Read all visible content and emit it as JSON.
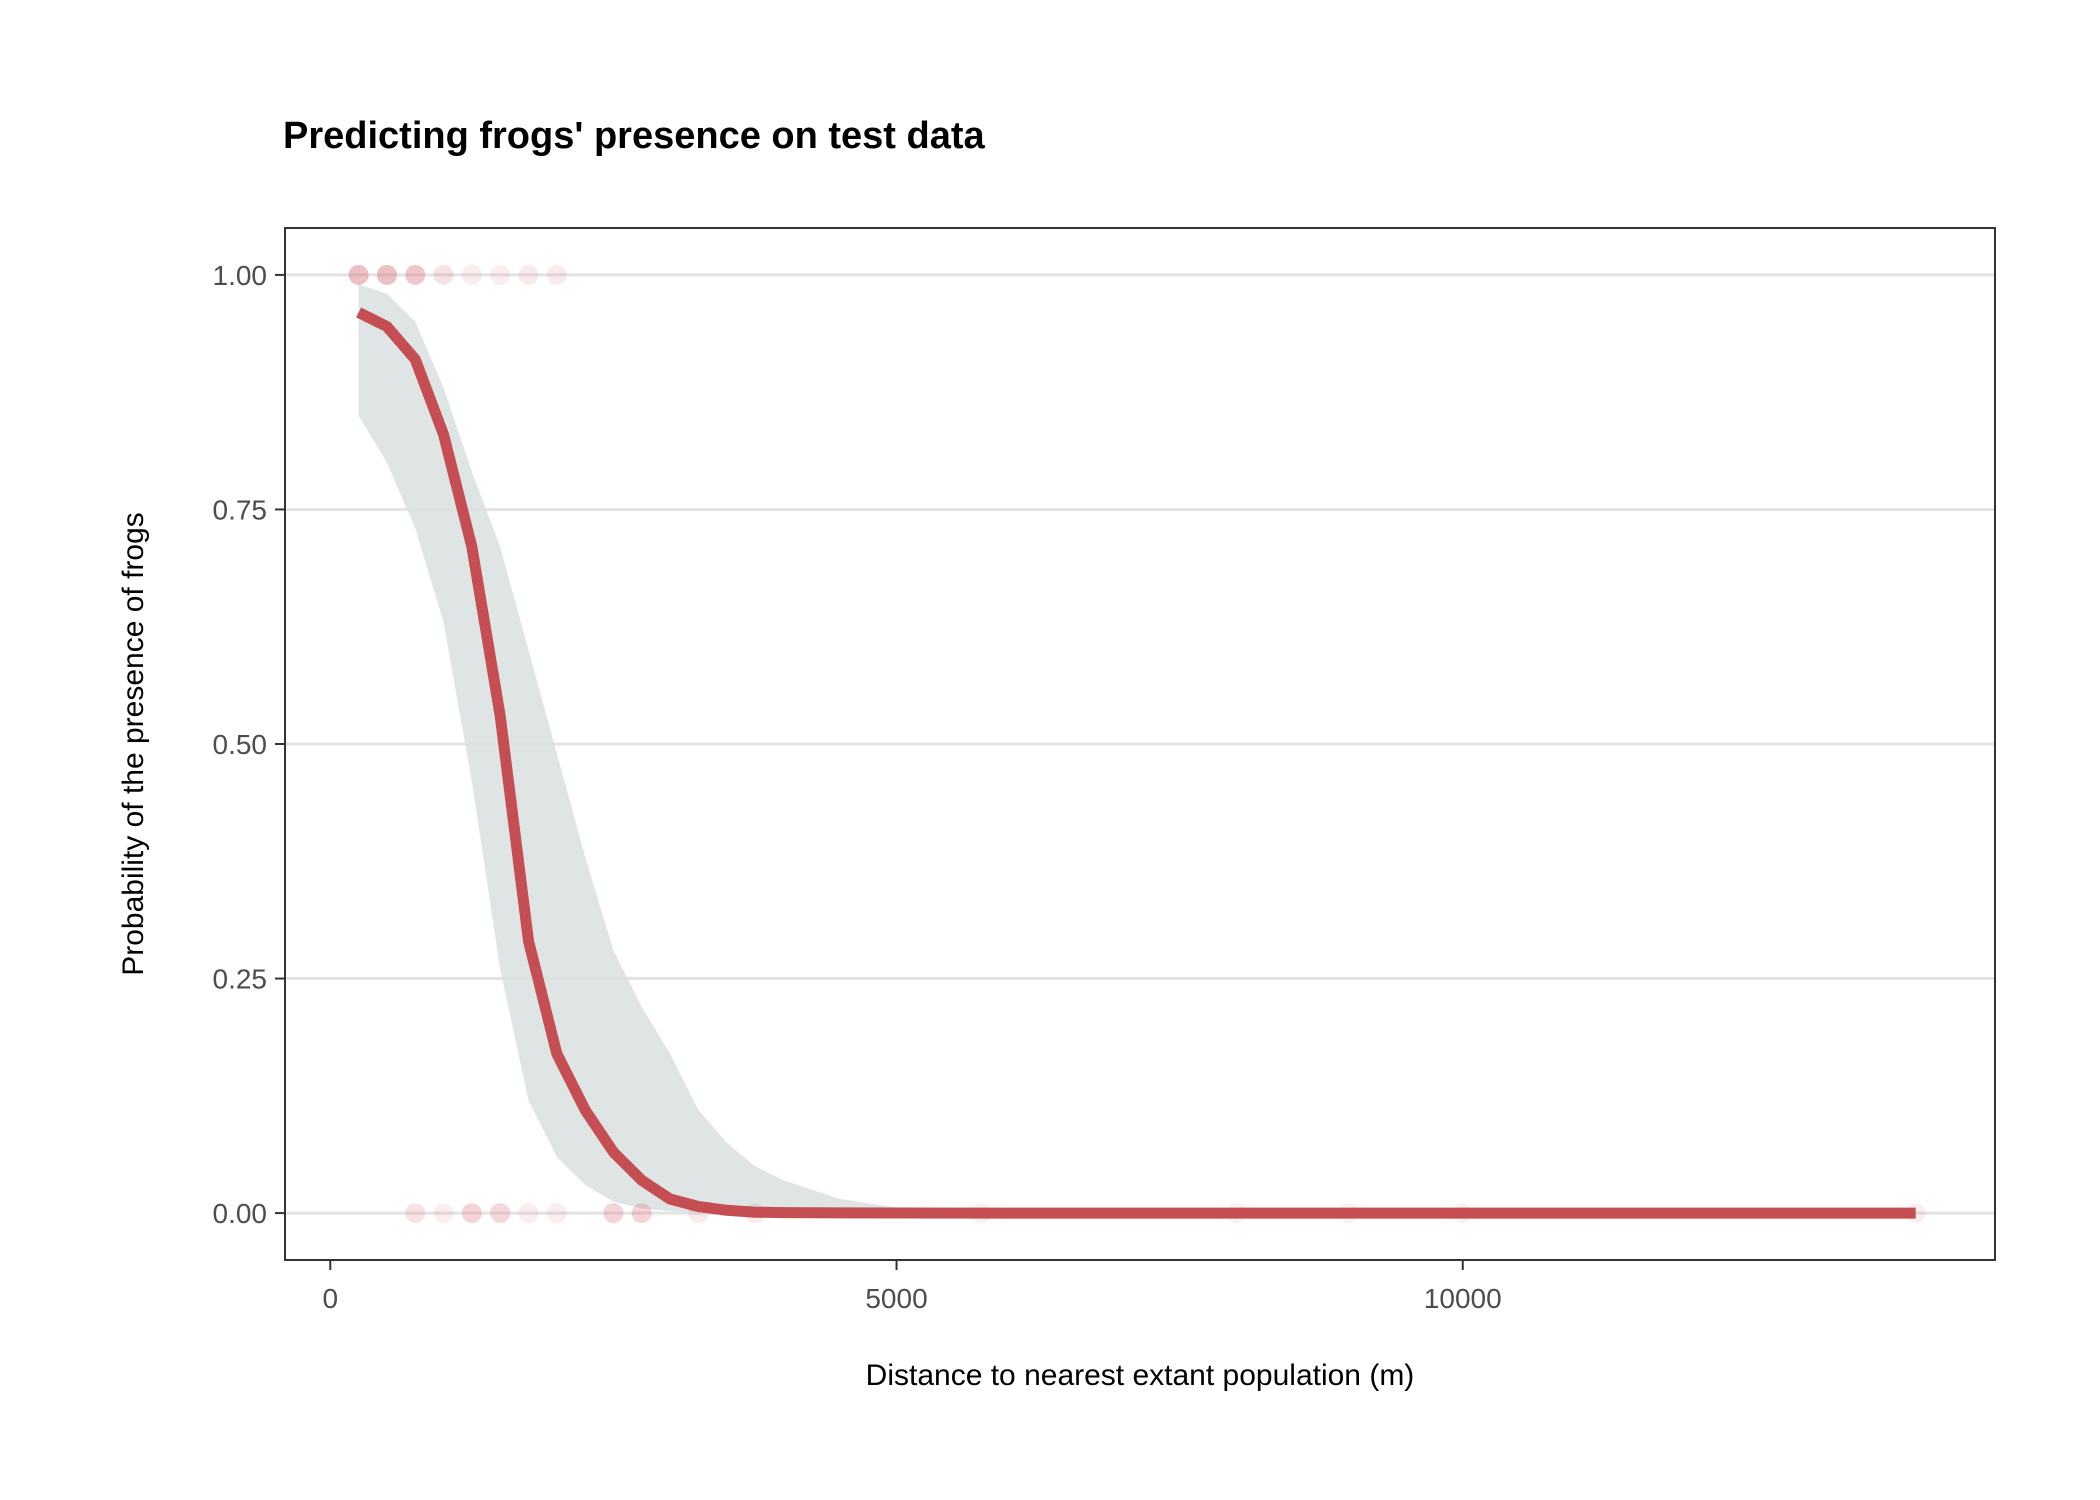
{
  "chart_data": {
    "type": "line",
    "title": "Predicting frogs' presence on test data",
    "xlabel": "Distance to nearest extant population (m)",
    "ylabel": "Probability of the presence of frogs",
    "xlim": [
      -400,
      14700
    ],
    "ylim": [
      -0.05,
      1.05
    ],
    "xticks": [
      0,
      5000,
      10000
    ],
    "xtick_labels": [
      "0",
      "5000",
      "10000"
    ],
    "yticks": [
      0,
      0.25,
      0.5,
      0.75,
      1
    ],
    "ytick_labels": [
      "0.00",
      "0.25",
      "0.50",
      "0.75",
      "1.00"
    ],
    "grid": "horizontal major",
    "colors": {
      "line": "#c44e52",
      "ribbon": "#d9dfdf",
      "points": "#d9727a",
      "grid": "#e3e3e3"
    },
    "series": [
      {
        "type": "line",
        "x": [
          250,
          500,
          750,
          1000,
          1250,
          1500,
          1750,
          2000,
          2250,
          2500,
          2750,
          3000,
          3250,
          3500,
          3750,
          4000,
          4500,
          5000,
          6000,
          8000,
          10000,
          14000
        ],
        "values": [
          0.96,
          0.945,
          0.91,
          0.83,
          0.71,
          0.53,
          0.29,
          0.17,
          0.11,
          0.065,
          0.035,
          0.015,
          0.007,
          0.003,
          0.001,
          0.0005,
          0.0002,
          0.0001,
          0,
          0,
          0,
          0
        ]
      },
      {
        "type": "ribbon",
        "x": [
          250,
          500,
          750,
          1000,
          1250,
          1500,
          1750,
          2000,
          2250,
          2500,
          2750,
          3000,
          3250,
          3500,
          3750,
          4000,
          4500,
          5000,
          6000,
          8000,
          10000,
          14000
        ],
        "upper": [
          0.99,
          0.98,
          0.95,
          0.88,
          0.79,
          0.71,
          0.6,
          0.49,
          0.38,
          0.28,
          0.22,
          0.17,
          0.11,
          0.075,
          0.05,
          0.035,
          0.015,
          0.006,
          0.001,
          0,
          0,
          0
        ],
        "lower": [
          0.85,
          0.8,
          0.73,
          0.63,
          0.46,
          0.26,
          0.12,
          0.06,
          0.03,
          0.012,
          0.005,
          0.002,
          0.001,
          0,
          0,
          0,
          0,
          0,
          0,
          0,
          0,
          0
        ]
      },
      {
        "type": "points",
        "points": [
          {
            "x": 250,
            "y": 1,
            "alpha": 0.45
          },
          {
            "x": 500,
            "y": 1,
            "alpha": 0.45
          },
          {
            "x": 750,
            "y": 1,
            "alpha": 0.4
          },
          {
            "x": 1000,
            "y": 1,
            "alpha": 0.2
          },
          {
            "x": 1250,
            "y": 1,
            "alpha": 0.12
          },
          {
            "x": 1500,
            "y": 1,
            "alpha": 0.12
          },
          {
            "x": 1750,
            "y": 1,
            "alpha": 0.15
          },
          {
            "x": 2000,
            "y": 1,
            "alpha": 0.15
          },
          {
            "x": 750,
            "y": 0,
            "alpha": 0.2
          },
          {
            "x": 1000,
            "y": 0,
            "alpha": 0.12
          },
          {
            "x": 1250,
            "y": 0,
            "alpha": 0.3
          },
          {
            "x": 1500,
            "y": 0,
            "alpha": 0.28
          },
          {
            "x": 1750,
            "y": 0,
            "alpha": 0.12
          },
          {
            "x": 2000,
            "y": 0,
            "alpha": 0.12
          },
          {
            "x": 2500,
            "y": 0,
            "alpha": 0.3
          },
          {
            "x": 2750,
            "y": 0,
            "alpha": 0.3
          },
          {
            "x": 3250,
            "y": 0,
            "alpha": 0.15
          },
          {
            "x": 3750,
            "y": 0,
            "alpha": 0.15
          },
          {
            "x": 5750,
            "y": 0,
            "alpha": 0.1
          },
          {
            "x": 8000,
            "y": 0,
            "alpha": 0.1
          },
          {
            "x": 9000,
            "y": 0,
            "alpha": 0.1
          },
          {
            "x": 10000,
            "y": 0,
            "alpha": 0.1
          },
          {
            "x": 14000,
            "y": 0,
            "alpha": 0.12
          }
        ]
      }
    ]
  }
}
